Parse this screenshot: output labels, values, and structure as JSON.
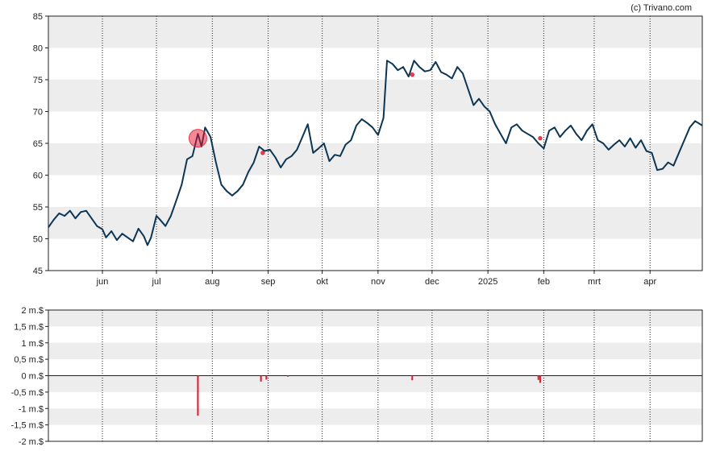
{
  "credit": "(c) Trivano.com",
  "colors": {
    "price_line": "#0d3554",
    "band": "#ededed",
    "grid": "#222222",
    "insider": "#e8142d",
    "insider_fill": "#e8142d"
  },
  "chart_data": [
    {
      "type": "line",
      "name": "price",
      "ylim": [
        45,
        85
      ],
      "y_ticks": [
        45,
        50,
        55,
        60,
        65,
        70,
        75,
        80,
        85
      ],
      "x_range": [
        "2024-05-02",
        "2025-04-30"
      ],
      "x_ticks": [
        {
          "label": "jun",
          "x": "2024-06-01"
        },
        {
          "label": "jul",
          "x": "2024-07-01"
        },
        {
          "label": "aug",
          "x": "2024-08-01"
        },
        {
          "label": "sep",
          "x": "2024-09-01"
        },
        {
          "label": "okt",
          "x": "2024-10-01"
        },
        {
          "label": "nov",
          "x": "2024-11-01"
        },
        {
          "label": "dec",
          "x": "2024-12-01"
        },
        {
          "label": "2025",
          "x": "2025-01-01"
        },
        {
          "label": "feb",
          "x": "2025-02-01"
        },
        {
          "label": "mrt",
          "x": "2025-03-01"
        },
        {
          "label": "apr",
          "x": "2025-04-01"
        }
      ],
      "grid": "vertical dotted at month starts, alternating horizontal bands",
      "points": [
        [
          "2024-05-02",
          51.8
        ],
        [
          "2024-05-05",
          53.0
        ],
        [
          "2024-05-08",
          54.0
        ],
        [
          "2024-05-11",
          53.6
        ],
        [
          "2024-05-14",
          54.4
        ],
        [
          "2024-05-17",
          53.2
        ],
        [
          "2024-05-20",
          54.2
        ],
        [
          "2024-05-23",
          54.4
        ],
        [
          "2024-05-26",
          53.2
        ],
        [
          "2024-05-29",
          52.0
        ],
        [
          "2024-06-01",
          51.5
        ],
        [
          "2024-06-03",
          50.2
        ],
        [
          "2024-06-06",
          51.2
        ],
        [
          "2024-06-09",
          49.8
        ],
        [
          "2024-06-12",
          50.8
        ],
        [
          "2024-06-15",
          50.2
        ],
        [
          "2024-06-18",
          49.6
        ],
        [
          "2024-06-21",
          51.6
        ],
        [
          "2024-06-24",
          50.4
        ],
        [
          "2024-06-26",
          49.0
        ],
        [
          "2024-06-28",
          50.2
        ],
        [
          "2024-07-01",
          53.6
        ],
        [
          "2024-07-03",
          53.0
        ],
        [
          "2024-07-06",
          52.0
        ],
        [
          "2024-07-09",
          53.6
        ],
        [
          "2024-07-12",
          56.0
        ],
        [
          "2024-07-15",
          58.5
        ],
        [
          "2024-07-18",
          62.5
        ],
        [
          "2024-07-21",
          63.0
        ],
        [
          "2024-07-24",
          66.5
        ],
        [
          "2024-07-26",
          64.5
        ],
        [
          "2024-07-28",
          67.5
        ],
        [
          "2024-07-31",
          66.0
        ],
        [
          "2024-08-03",
          62.0
        ],
        [
          "2024-08-06",
          58.5
        ],
        [
          "2024-08-09",
          57.5
        ],
        [
          "2024-08-12",
          56.8
        ],
        [
          "2024-08-15",
          57.5
        ],
        [
          "2024-08-18",
          58.5
        ],
        [
          "2024-08-21",
          60.5
        ],
        [
          "2024-08-24",
          62.0
        ],
        [
          "2024-08-27",
          64.5
        ],
        [
          "2024-08-30",
          63.8
        ],
        [
          "2024-09-02",
          64.0
        ],
        [
          "2024-09-05",
          62.8
        ],
        [
          "2024-09-08",
          61.2
        ],
        [
          "2024-09-11",
          62.5
        ],
        [
          "2024-09-14",
          63.0
        ],
        [
          "2024-09-17",
          64.0
        ],
        [
          "2024-09-20",
          66.0
        ],
        [
          "2024-09-23",
          68.0
        ],
        [
          "2024-09-26",
          63.5
        ],
        [
          "2024-09-29",
          64.2
        ],
        [
          "2024-10-02",
          65.0
        ],
        [
          "2024-10-05",
          62.2
        ],
        [
          "2024-10-08",
          63.2
        ],
        [
          "2024-10-11",
          63.0
        ],
        [
          "2024-10-14",
          64.8
        ],
        [
          "2024-10-17",
          65.5
        ],
        [
          "2024-10-20",
          67.8
        ],
        [
          "2024-10-23",
          68.8
        ],
        [
          "2024-10-26",
          68.2
        ],
        [
          "2024-10-29",
          67.5
        ],
        [
          "2024-11-01",
          66.3
        ],
        [
          "2024-11-04",
          69.0
        ],
        [
          "2024-11-06",
          78.0
        ],
        [
          "2024-11-09",
          77.5
        ],
        [
          "2024-11-12",
          76.5
        ],
        [
          "2024-11-15",
          77.0
        ],
        [
          "2024-11-18",
          75.5
        ],
        [
          "2024-11-21",
          78.0
        ],
        [
          "2024-11-24",
          77.0
        ],
        [
          "2024-11-27",
          76.3
        ],
        [
          "2024-11-30",
          76.5
        ],
        [
          "2024-12-03",
          77.8
        ],
        [
          "2024-12-06",
          76.2
        ],
        [
          "2024-12-09",
          75.8
        ],
        [
          "2024-12-12",
          75.2
        ],
        [
          "2024-12-15",
          77.0
        ],
        [
          "2024-12-18",
          76.0
        ],
        [
          "2024-12-21",
          73.5
        ],
        [
          "2024-12-24",
          71.0
        ],
        [
          "2024-12-27",
          72.0
        ],
        [
          "2024-12-30",
          70.8
        ],
        [
          "2025-01-02",
          70.0
        ],
        [
          "2025-01-05",
          68.0
        ],
        [
          "2025-01-08",
          66.5
        ],
        [
          "2025-01-11",
          65.0
        ],
        [
          "2025-01-14",
          67.5
        ],
        [
          "2025-01-17",
          68.0
        ],
        [
          "2025-01-20",
          67.0
        ],
        [
          "2025-01-23",
          66.5
        ],
        [
          "2025-01-26",
          66.0
        ],
        [
          "2025-01-29",
          65.0
        ],
        [
          "2025-02-01",
          64.2
        ],
        [
          "2025-02-04",
          67.0
        ],
        [
          "2025-02-07",
          67.5
        ],
        [
          "2025-02-10",
          66.0
        ],
        [
          "2025-02-13",
          67.0
        ],
        [
          "2025-02-16",
          67.8
        ],
        [
          "2025-02-19",
          66.5
        ],
        [
          "2025-02-22",
          65.5
        ],
        [
          "2025-02-25",
          67.0
        ],
        [
          "2025-02-28",
          68.0
        ],
        [
          "2025-03-03",
          65.5
        ],
        [
          "2025-03-06",
          65.0
        ],
        [
          "2025-03-09",
          64.0
        ],
        [
          "2025-03-12",
          64.8
        ],
        [
          "2025-03-15",
          65.5
        ],
        [
          "2025-03-18",
          64.5
        ],
        [
          "2025-03-21",
          65.8
        ],
        [
          "2025-03-24",
          64.3
        ],
        [
          "2025-03-27",
          65.5
        ],
        [
          "2025-03-30",
          63.8
        ],
        [
          "2025-04-02",
          63.5
        ],
        [
          "2025-04-05",
          60.8
        ],
        [
          "2025-04-08",
          61.0
        ],
        [
          "2025-04-11",
          62.0
        ],
        [
          "2025-04-14",
          61.5
        ],
        [
          "2025-04-17",
          63.5
        ],
        [
          "2025-04-20",
          65.5
        ],
        [
          "2025-04-23",
          67.5
        ],
        [
          "2025-04-26",
          68.5
        ],
        [
          "2025-04-30",
          67.8
        ]
      ],
      "markers": [
        {
          "x": "2024-07-24",
          "y": 65.8,
          "size": "large"
        },
        {
          "x": "2024-08-29",
          "y": 63.5,
          "size": "small"
        },
        {
          "x": "2024-11-20",
          "y": 75.8,
          "size": "small"
        },
        {
          "x": "2025-01-30",
          "y": 65.8,
          "size": "small"
        }
      ]
    },
    {
      "type": "bar",
      "name": "insider-transactions",
      "ylim": [
        -2,
        2
      ],
      "y_ticks": [
        {
          "value": 2,
          "label": "2 m.$"
        },
        {
          "value": 1.5,
          "label": "1,5 m.$"
        },
        {
          "value": 1,
          "label": "1 m.$"
        },
        {
          "value": 0.5,
          "label": "0,5 m.$"
        },
        {
          "value": 0,
          "label": "0 m.$"
        },
        {
          "value": -0.5,
          "label": "-0,5 m.$"
        },
        {
          "value": -1,
          "label": "-1 m.$"
        },
        {
          "value": -1.5,
          "label": "-1,5 m.$"
        },
        {
          "value": -2,
          "label": "-2 m.$"
        }
      ],
      "bars": [
        {
          "x": "2024-07-24",
          "value": -1.22
        },
        {
          "x": "2024-08-28",
          "value": -0.18
        },
        {
          "x": "2024-08-31",
          "value": -0.12
        },
        {
          "x": "2024-09-12",
          "value": -0.03
        },
        {
          "x": "2024-11-20",
          "value": -0.14
        },
        {
          "x": "2025-01-29",
          "value": -0.13
        },
        {
          "x": "2025-01-30",
          "value": -0.22
        }
      ]
    }
  ]
}
